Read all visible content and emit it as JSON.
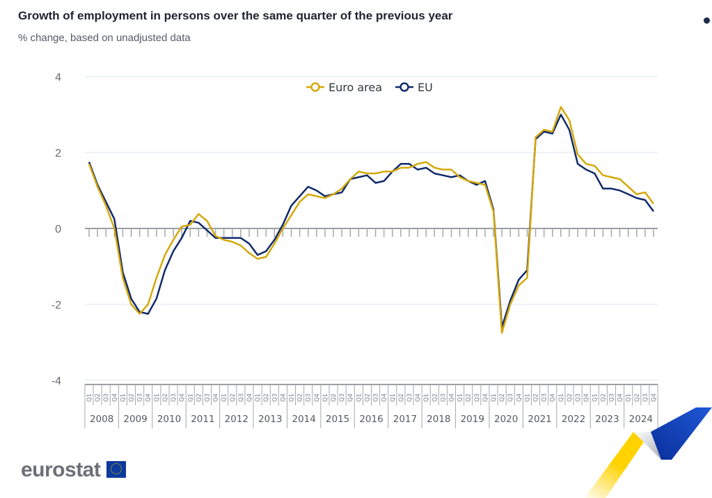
{
  "header": {
    "title": "Growth of employment in persons over the same quarter of the previous year",
    "subtitle": "% change, based on unadjusted data"
  },
  "branding": {
    "logo_text": "eurostat"
  },
  "colors": {
    "euro_area": "#d4a80c",
    "eu": "#10296b",
    "grid": "#dfe5f1",
    "axis": "#7c7f86"
  },
  "chart_data": {
    "type": "line",
    "title": "Growth of employment in persons over the same quarter of the previous year",
    "subtitle": "% change, based on unadjusted data",
    "xlabel": "",
    "ylabel": "",
    "ylim": [
      -4,
      4
    ],
    "yticks": [
      4,
      2,
      0,
      -2,
      -4
    ],
    "grid": true,
    "legend": "top-center",
    "years": [
      "2008",
      "2009",
      "2010",
      "2011",
      "2012",
      "2013",
      "2014",
      "2015",
      "2016",
      "2017",
      "2018",
      "2019",
      "2020",
      "2021",
      "2022",
      "2023",
      "2024"
    ],
    "quarters": [
      "Q1",
      "Q2",
      "Q3",
      "Q4"
    ],
    "series": [
      {
        "name": "Euro area",
        "color": "#d4a80c",
        "values": [
          1.7,
          1.1,
          0.6,
          0.0,
          -1.3,
          -2.0,
          -2.25,
          -2.0,
          -1.3,
          -0.7,
          -0.3,
          0.05,
          0.1,
          0.38,
          0.2,
          -0.2,
          -0.3,
          -0.35,
          -0.45,
          -0.65,
          -0.8,
          -0.75,
          -0.4,
          0.0,
          0.35,
          0.7,
          0.9,
          0.85,
          0.8,
          0.9,
          1.05,
          1.3,
          1.5,
          1.45,
          1.45,
          1.5,
          1.5,
          1.6,
          1.6,
          1.7,
          1.75,
          1.6,
          1.55,
          1.55,
          1.35,
          1.25,
          1.2,
          1.15,
          0.45,
          -2.75,
          -2.0,
          -1.5,
          -1.3,
          2.4,
          2.6,
          2.55,
          3.2,
          2.85,
          1.95,
          1.7,
          1.65,
          1.4,
          1.35,
          1.3,
          1.1,
          0.9,
          0.95,
          0.65
        ]
      },
      {
        "name": "EU",
        "color": "#10296b",
        "values": [
          1.75,
          1.15,
          0.7,
          0.25,
          -1.15,
          -1.85,
          -2.2,
          -2.25,
          -1.85,
          -1.1,
          -0.6,
          -0.25,
          0.2,
          0.15,
          -0.05,
          -0.25,
          -0.25,
          -0.25,
          -0.25,
          -0.4,
          -0.7,
          -0.6,
          -0.3,
          0.1,
          0.6,
          0.85,
          1.1,
          1.0,
          0.85,
          0.9,
          0.95,
          1.3,
          1.35,
          1.4,
          1.2,
          1.25,
          1.5,
          1.7,
          1.7,
          1.55,
          1.6,
          1.45,
          1.4,
          1.35,
          1.4,
          1.25,
          1.15,
          1.25,
          0.5,
          -2.6,
          -1.9,
          -1.35,
          -1.1,
          2.35,
          2.55,
          2.5,
          3.0,
          2.6,
          1.7,
          1.55,
          1.45,
          1.05,
          1.05,
          1.0,
          0.9,
          0.8,
          0.75,
          0.45
        ]
      }
    ]
  }
}
